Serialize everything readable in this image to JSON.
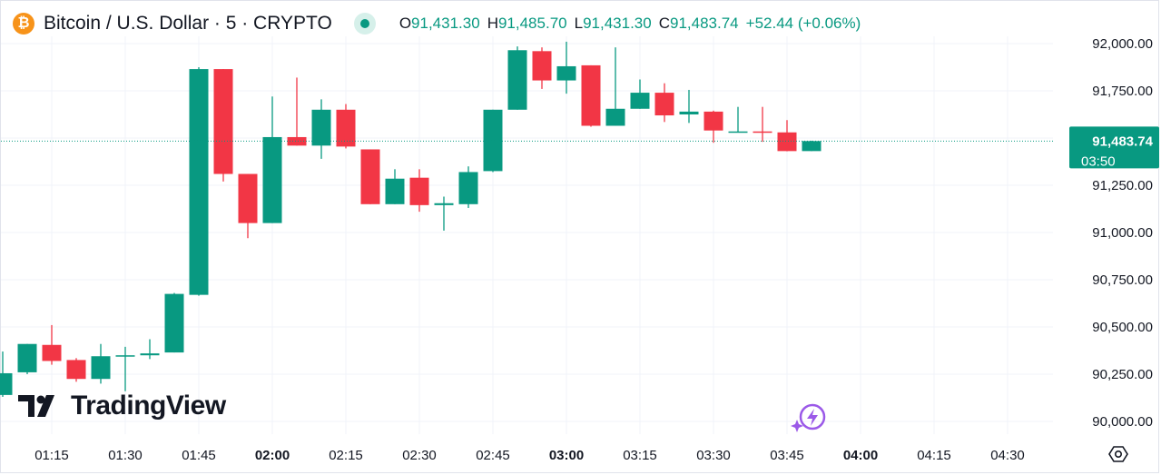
{
  "header": {
    "symbol": "Bitcoin / U.S. Dollar · 5 · CRYPTO",
    "coin_icon": "bitcoin-icon",
    "open_key": "O",
    "open": "91,431.30",
    "high_key": "H",
    "high": "91,485.70",
    "low_key": "L",
    "low": "91,431.30",
    "close_key": "C",
    "close": "91,483.74",
    "change": "+52.44 (+0.06%)"
  },
  "price_tag": {
    "price": "91,483.74",
    "countdown": "03:50"
  },
  "branding": {
    "logo_text": "TradingView"
  },
  "colors": {
    "up": "#089981",
    "down": "#f23645",
    "grid": "#f0f3fa",
    "text": "#131722"
  },
  "chart_data": {
    "type": "candlestick",
    "interval_minutes": 5,
    "ylim": [
      89950,
      92060
    ],
    "y_ticks": [
      90000,
      90250,
      90500,
      90750,
      91000,
      91250,
      91500,
      91750,
      92000
    ],
    "y_tick_labels": [
      "90,000.00",
      "90,250.00",
      "",
      "90,750.00",
      "91,000.00",
      "91,250.00",
      "",
      "91,750.00",
      "92,000.00"
    ],
    "y_tick_labels_main": [
      "90,000.00",
      "90,250.00",
      "90,500.00",
      "90,750.00",
      "91,000.00",
      "91,250.00",
      "91,750.00",
      "92,000.00"
    ],
    "x_tick_labels": [
      "01:15",
      "01:30",
      "01:45",
      "02:00",
      "02:15",
      "02:30",
      "02:45",
      "03:00",
      "03:15",
      "03:30",
      "03:45",
      "04:00",
      "04:15",
      "04:30"
    ],
    "x_tick_bold": [
      "02:00",
      "03:00",
      "04:00"
    ],
    "last_price": 91483.74,
    "candles": [
      {
        "t": "01:05",
        "o": 90140,
        "h": 90370,
        "l": 90130,
        "c": 90255
      },
      {
        "t": "01:10",
        "o": 90260,
        "h": 90410,
        "l": 90250,
        "c": 90410
      },
      {
        "t": "01:15",
        "o": 90405,
        "h": 90510,
        "l": 90300,
        "c": 90320
      },
      {
        "t": "01:20",
        "o": 90325,
        "h": 90335,
        "l": 90210,
        "c": 90225
      },
      {
        "t": "01:25",
        "o": 90225,
        "h": 90410,
        "l": 90200,
        "c": 90345
      },
      {
        "t": "01:30",
        "o": 90345,
        "h": 90395,
        "l": 90160,
        "c": 90350
      },
      {
        "t": "01:35",
        "o": 90350,
        "h": 90435,
        "l": 90330,
        "c": 90360
      },
      {
        "t": "01:40",
        "o": 90365,
        "h": 90680,
        "l": 90365,
        "c": 90675
      },
      {
        "t": "01:45",
        "o": 90670,
        "h": 91875,
        "l": 90665,
        "c": 91865
      },
      {
        "t": "01:50",
        "o": 91865,
        "h": 91865,
        "l": 91270,
        "c": 91310
      },
      {
        "t": "01:55",
        "o": 91310,
        "h": 91310,
        "l": 90970,
        "c": 91050
      },
      {
        "t": "02:00",
        "o": 91050,
        "h": 91720,
        "l": 91050,
        "c": 91505
      },
      {
        "t": "02:05",
        "o": 91505,
        "h": 91820,
        "l": 91460,
        "c": 91460
      },
      {
        "t": "02:10",
        "o": 91460,
        "h": 91705,
        "l": 91390,
        "c": 91650
      },
      {
        "t": "02:15",
        "o": 91650,
        "h": 91680,
        "l": 91445,
        "c": 91455
      },
      {
        "t": "02:20",
        "o": 91440,
        "h": 91440,
        "l": 91150,
        "c": 91150
      },
      {
        "t": "02:25",
        "o": 91150,
        "h": 91335,
        "l": 91150,
        "c": 91285
      },
      {
        "t": "02:30",
        "o": 91290,
        "h": 91335,
        "l": 91110,
        "c": 91145
      },
      {
        "t": "02:35",
        "o": 91145,
        "h": 91190,
        "l": 91010,
        "c": 91155
      },
      {
        "t": "02:40",
        "o": 91150,
        "h": 91350,
        "l": 91130,
        "c": 91320
      },
      {
        "t": "02:45",
        "o": 91325,
        "h": 91650,
        "l": 91320,
        "c": 91650
      },
      {
        "t": "02:50",
        "o": 91650,
        "h": 91985,
        "l": 91650,
        "c": 91965
      },
      {
        "t": "02:55",
        "o": 91960,
        "h": 91980,
        "l": 91760,
        "c": 91805
      },
      {
        "t": "03:00",
        "o": 91805,
        "h": 92010,
        "l": 91735,
        "c": 91880
      },
      {
        "t": "03:05",
        "o": 91885,
        "h": 91885,
        "l": 91560,
        "c": 91565
      },
      {
        "t": "03:10",
        "o": 91565,
        "h": 91980,
        "l": 91565,
        "c": 91655
      },
      {
        "t": "03:15",
        "o": 91655,
        "h": 91810,
        "l": 91655,
        "c": 91740
      },
      {
        "t": "03:20",
        "o": 91740,
        "h": 91790,
        "l": 91585,
        "c": 91620
      },
      {
        "t": "03:25",
        "o": 91625,
        "h": 91755,
        "l": 91580,
        "c": 91640
      },
      {
        "t": "03:30",
        "o": 91640,
        "h": 91645,
        "l": 91475,
        "c": 91540
      },
      {
        "t": "03:35",
        "o": 91535,
        "h": 91665,
        "l": 91530,
        "c": 91535
      },
      {
        "t": "03:40",
        "o": 91535,
        "h": 91665,
        "l": 91480,
        "c": 91530
      },
      {
        "t": "03:45",
        "o": 91530,
        "h": 91595,
        "l": 91430,
        "c": 91431
      },
      {
        "t": "03:50",
        "o": 91431,
        "h": 91486,
        "l": 91431,
        "c": 91484
      }
    ]
  }
}
